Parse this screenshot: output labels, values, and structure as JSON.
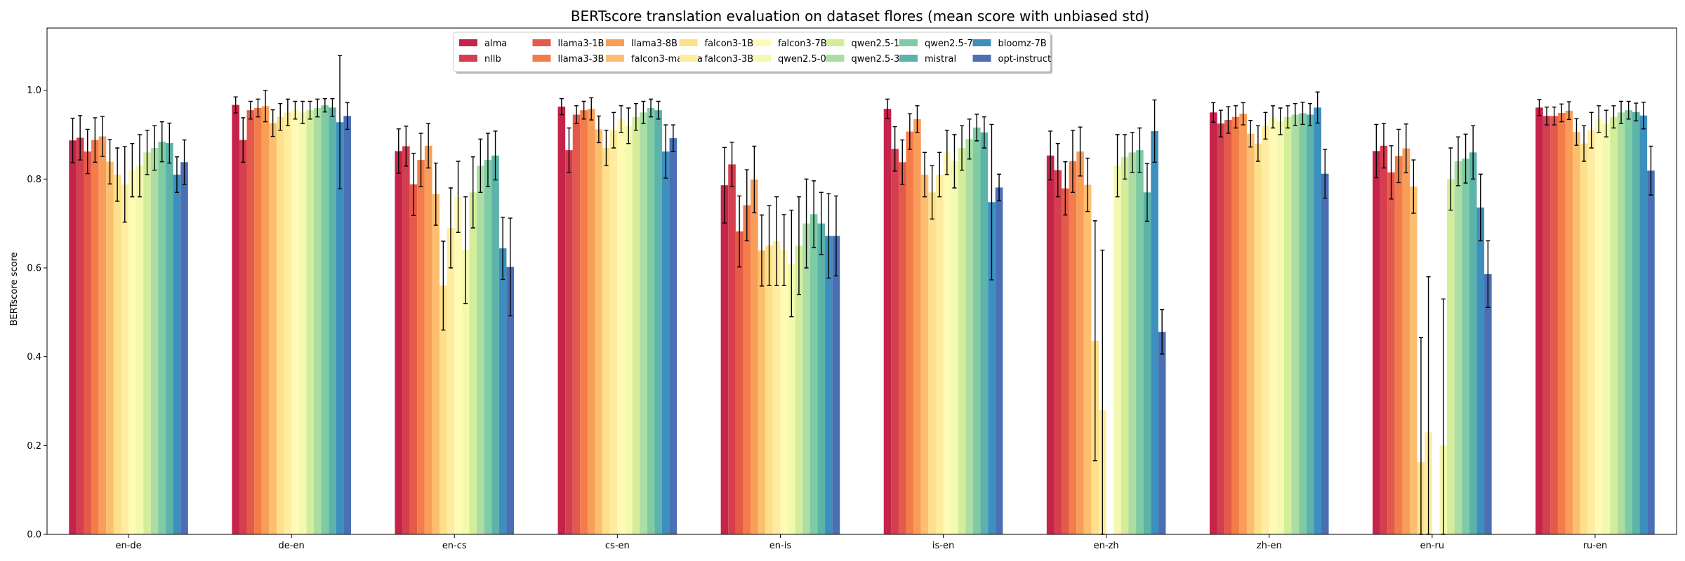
{
  "chart_data": {
    "type": "bar",
    "title": "BERTscore translation evaluation on dataset flores (mean score with unbiased std)",
    "xlabel": "",
    "ylabel": "BERTscore score",
    "ylim": [
      0,
      1.14
    ],
    "yticks": [
      "0.0",
      "0.2",
      "0.4",
      "0.6",
      "0.8",
      "1.0"
    ],
    "grid": false,
    "legend_position": "top-center",
    "error_bars": true,
    "categories": [
      "en-de",
      "de-en",
      "en-cs",
      "cs-en",
      "en-is",
      "is-en",
      "en-zh",
      "zh-en",
      "en-ru",
      "ru-en"
    ],
    "series": [
      {
        "name": "alma",
        "color": "#c5234a",
        "values": [
          0.887,
          0.967,
          0.863,
          0.963,
          0.786,
          0.958,
          0.853,
          0.95,
          0.863,
          0.961
        ],
        "errors": [
          0.05,
          0.018,
          0.05,
          0.018,
          0.085,
          0.022,
          0.055,
          0.022,
          0.06,
          0.018
        ]
      },
      {
        "name": "nllb",
        "color": "#d53e4f",
        "values": [
          0.893,
          0.888,
          0.874,
          0.865,
          0.833,
          0.868,
          0.82,
          0.925,
          0.875,
          0.942
        ],
        "errors": [
          0.05,
          0.05,
          0.045,
          0.05,
          0.05,
          0.05,
          0.06,
          0.03,
          0.05,
          0.02
        ]
      },
      {
        "name": "llama3-1B",
        "color": "#e45a4a",
        "values": [
          0.862,
          0.955,
          0.788,
          0.945,
          0.682,
          0.838,
          0.779,
          0.933,
          0.815,
          0.942
        ],
        "errors": [
          0.05,
          0.02,
          0.07,
          0.02,
          0.08,
          0.05,
          0.06,
          0.03,
          0.06,
          0.02
        ]
      },
      {
        "name": "llama3-3B",
        "color": "#f47c4a",
        "values": [
          0.888,
          0.96,
          0.843,
          0.955,
          0.741,
          0.907,
          0.84,
          0.94,
          0.852,
          0.949
        ],
        "errors": [
          0.05,
          0.02,
          0.06,
          0.02,
          0.08,
          0.04,
          0.07,
          0.025,
          0.06,
          0.02
        ]
      },
      {
        "name": "llama3-8B",
        "color": "#f99e59",
        "values": [
          0.896,
          0.964,
          0.875,
          0.958,
          0.799,
          0.935,
          0.862,
          0.947,
          0.869,
          0.954
        ],
        "errors": [
          0.045,
          0.035,
          0.05,
          0.025,
          0.075,
          0.03,
          0.055,
          0.025,
          0.055,
          0.02
        ]
      },
      {
        "name": "falcon3-mamba",
        "color": "#fdbf6f",
        "values": [
          0.839,
          0.926,
          0.766,
          0.912,
          0.639,
          0.81,
          0.787,
          0.902,
          0.783,
          0.906
        ],
        "errors": [
          0.05,
          0.03,
          0.07,
          0.03,
          0.08,
          0.05,
          0.06,
          0.03,
          0.06,
          0.03
        ]
      },
      {
        "name": "falcon3-1B",
        "color": "#fee08b",
        "values": [
          0.81,
          0.94,
          0.56,
          0.87,
          0.65,
          0.77,
          0.436,
          0.88,
          0.163,
          0.88
        ],
        "errors": [
          0.06,
          0.03,
          0.1,
          0.04,
          0.09,
          0.06,
          0.27,
          0.04,
          0.28,
          0.04
        ]
      },
      {
        "name": "falcon3-3B",
        "color": "#feeda0",
        "values": [
          0.788,
          0.95,
          0.69,
          0.91,
          0.66,
          0.81,
          0.28,
          0.92,
          0.23,
          0.91
        ],
        "errors": [
          0.085,
          0.03,
          0.09,
          0.04,
          0.1,
          0.05,
          0.36,
          0.03,
          0.35,
          0.04
        ]
      },
      {
        "name": "falcon3-7B",
        "color": "#fffbb5",
        "values": [
          0.82,
          0.955,
          0.76,
          0.935,
          0.64,
          0.86,
          0.0,
          0.94,
          0.0,
          0.935
        ],
        "errors": [
          0.06,
          0.02,
          0.08,
          0.03,
          0.08,
          0.05,
          0.0,
          0.025,
          0.0,
          0.03
        ]
      },
      {
        "name": "qwen2.5-0.5B",
        "color": "#f3f9ae",
        "values": [
          0.83,
          0.95,
          0.64,
          0.92,
          0.61,
          0.84,
          0.83,
          0.93,
          0.2,
          0.925
        ],
        "errors": [
          0.07,
          0.025,
          0.12,
          0.04,
          0.12,
          0.06,
          0.07,
          0.03,
          0.33,
          0.03
        ]
      },
      {
        "name": "qwen2.5-1.5B",
        "color": "#d4ed9b",
        "values": [
          0.86,
          0.955,
          0.77,
          0.94,
          0.65,
          0.87,
          0.85,
          0.94,
          0.8,
          0.94
        ],
        "errors": [
          0.05,
          0.02,
          0.08,
          0.03,
          0.11,
          0.05,
          0.05,
          0.025,
          0.07,
          0.025
        ]
      },
      {
        "name": "qwen2.5-3B",
        "color": "#abdda4",
        "values": [
          0.87,
          0.96,
          0.83,
          0.95,
          0.7,
          0.89,
          0.86,
          0.945,
          0.84,
          0.95
        ],
        "errors": [
          0.05,
          0.02,
          0.06,
          0.025,
          0.1,
          0.045,
          0.045,
          0.025,
          0.055,
          0.025
        ]
      },
      {
        "name": "qwen2.5-7B",
        "color": "#7fcba4",
        "values": [
          0.884,
          0.966,
          0.843,
          0.96,
          0.721,
          0.916,
          0.865,
          0.948,
          0.846,
          0.955
        ],
        "errors": [
          0.045,
          0.015,
          0.06,
          0.02,
          0.075,
          0.03,
          0.05,
          0.025,
          0.055,
          0.02
        ]
      },
      {
        "name": "mistral",
        "color": "#5bb3a9",
        "values": [
          0.881,
          0.961,
          0.853,
          0.955,
          0.7,
          0.905,
          0.77,
          0.945,
          0.86,
          0.951
        ],
        "errors": [
          0.045,
          0.02,
          0.055,
          0.02,
          0.07,
          0.035,
          0.065,
          0.025,
          0.06,
          0.02
        ]
      },
      {
        "name": "bloomz-7B",
        "color": "#3d8fbe",
        "values": [
          0.81,
          0.928,
          0.644,
          0.862,
          0.672,
          0.748,
          0.908,
          0.961,
          0.736,
          0.943
        ],
        "errors": [
          0.04,
          0.15,
          0.07,
          0.06,
          0.095,
          0.175,
          0.07,
          0.035,
          0.075,
          0.03
        ]
      },
      {
        "name": "opt-instruct",
        "color": "#4a6fb4",
        "values": [
          0.838,
          0.942,
          0.602,
          0.892,
          0.672,
          0.781,
          0.456,
          0.812,
          0.586,
          0.819
        ],
        "errors": [
          0.05,
          0.03,
          0.11,
          0.03,
          0.09,
          0.03,
          0.05,
          0.055,
          0.075,
          0.055
        ]
      }
    ]
  }
}
